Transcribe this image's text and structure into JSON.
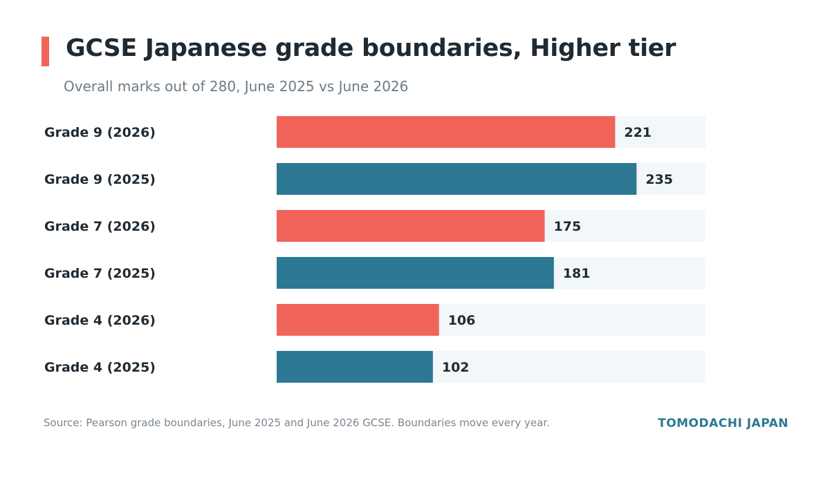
{
  "header": {
    "title": "GCSE Japanese grade boundaries, Higher tier",
    "subtitle": "Overall marks out of 280, June 2025 vs June 2026"
  },
  "footer": {
    "source": "Source: Pearson grade boundaries, June 2025 and June 2026 GCSE. Boundaries move every year.",
    "brand": "TOMODACHI JAPAN"
  },
  "colors": {
    "series_2026": "#f0645a",
    "series_2025": "#2d7893",
    "track": "#f2f7fa",
    "label": "#1f2a33"
  },
  "chart_data": {
    "type": "bar",
    "orientation": "horizontal",
    "title": "GCSE Japanese grade boundaries, Higher tier",
    "subtitle": "Overall marks out of 280, June 2025 vs June 2026",
    "categories": [
      "Grade 9 (2026)",
      "Grade 9 (2025)",
      "Grade 7 (2026)",
      "Grade 7 (2025)",
      "Grade 4 (2026)",
      "Grade 4 (2025)"
    ],
    "values": [
      221,
      235,
      175,
      181,
      106,
      102
    ],
    "years": [
      "2026",
      "2025",
      "2026",
      "2025",
      "2026",
      "2025"
    ],
    "xlim": [
      0,
      280
    ],
    "grid": false,
    "legend": "none",
    "data_labels": true
  }
}
